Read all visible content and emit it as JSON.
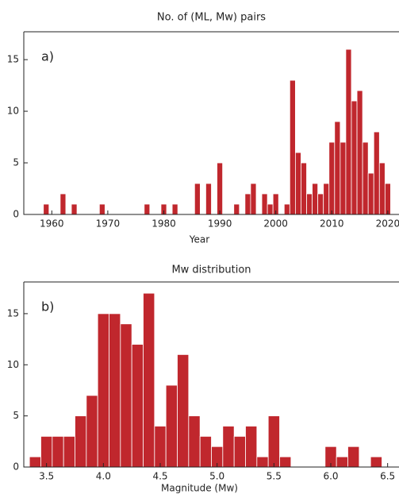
{
  "chart_data": [
    {
      "type": "bar",
      "title": "No. of (ML, Mw) pairs",
      "panel_label": "a)",
      "x_label": "Year",
      "color": "#c0272d",
      "x": [
        1959,
        1962,
        1964,
        1969,
        1977,
        1980,
        1982,
        1986,
        1988,
        1990,
        1993,
        1995,
        1996,
        1998,
        1999,
        2000,
        2002,
        2003,
        2004,
        2005,
        2006,
        2007,
        2008,
        2009,
        2010,
        2011,
        2012,
        2013,
        2014,
        2015,
        2016,
        2017,
        2018,
        2019,
        2020
      ],
      "values": [
        1,
        2,
        1,
        1,
        1,
        1,
        1,
        3,
        3,
        5,
        1,
        2,
        3,
        2,
        1,
        2,
        1,
        13,
        6,
        5,
        2,
        3,
        2,
        3,
        7,
        9,
        7,
        16,
        11,
        12,
        7,
        4,
        8,
        5,
        3
      ],
      "xlim": [
        1955,
        2022
      ],
      "xticks": [
        1960,
        1970,
        1980,
        1990,
        2000,
        2010,
        2020
      ],
      "ylim": [
        0,
        17.7
      ],
      "yticks": [
        0,
        5,
        10,
        15
      ]
    },
    {
      "type": "histogram",
      "title": "Mw distribution",
      "panel_label": "b)",
      "x_label": "Magnitude (Mw)",
      "color": "#c0272d",
      "bins": [
        3.35,
        3.45,
        3.55,
        3.65,
        3.75,
        3.85,
        3.95,
        4.05,
        4.15,
        4.25,
        4.35,
        4.45,
        4.55,
        4.65,
        4.75,
        4.85,
        4.95,
        5.05,
        5.15,
        5.25,
        5.35,
        5.45,
        5.55,
        5.65,
        5.75,
        5.85,
        5.95,
        6.05,
        6.15,
        6.25,
        6.35,
        6.45
      ],
      "values": [
        1,
        3,
        3,
        3,
        5,
        7,
        15,
        15,
        14,
        12,
        17,
        4,
        8,
        11,
        5,
        3,
        2,
        4,
        3,
        4,
        1,
        5,
        1,
        0,
        0,
        0,
        2,
        1,
        2,
        0,
        1
      ],
      "xlim": [
        3.3,
        6.6
      ],
      "xticks": [
        3.5,
        4.0,
        4.5,
        5.0,
        5.5,
        6.0,
        6.5
      ],
      "ylim": [
        0,
        18.1
      ],
      "yticks": [
        0,
        5,
        10,
        15
      ]
    }
  ]
}
